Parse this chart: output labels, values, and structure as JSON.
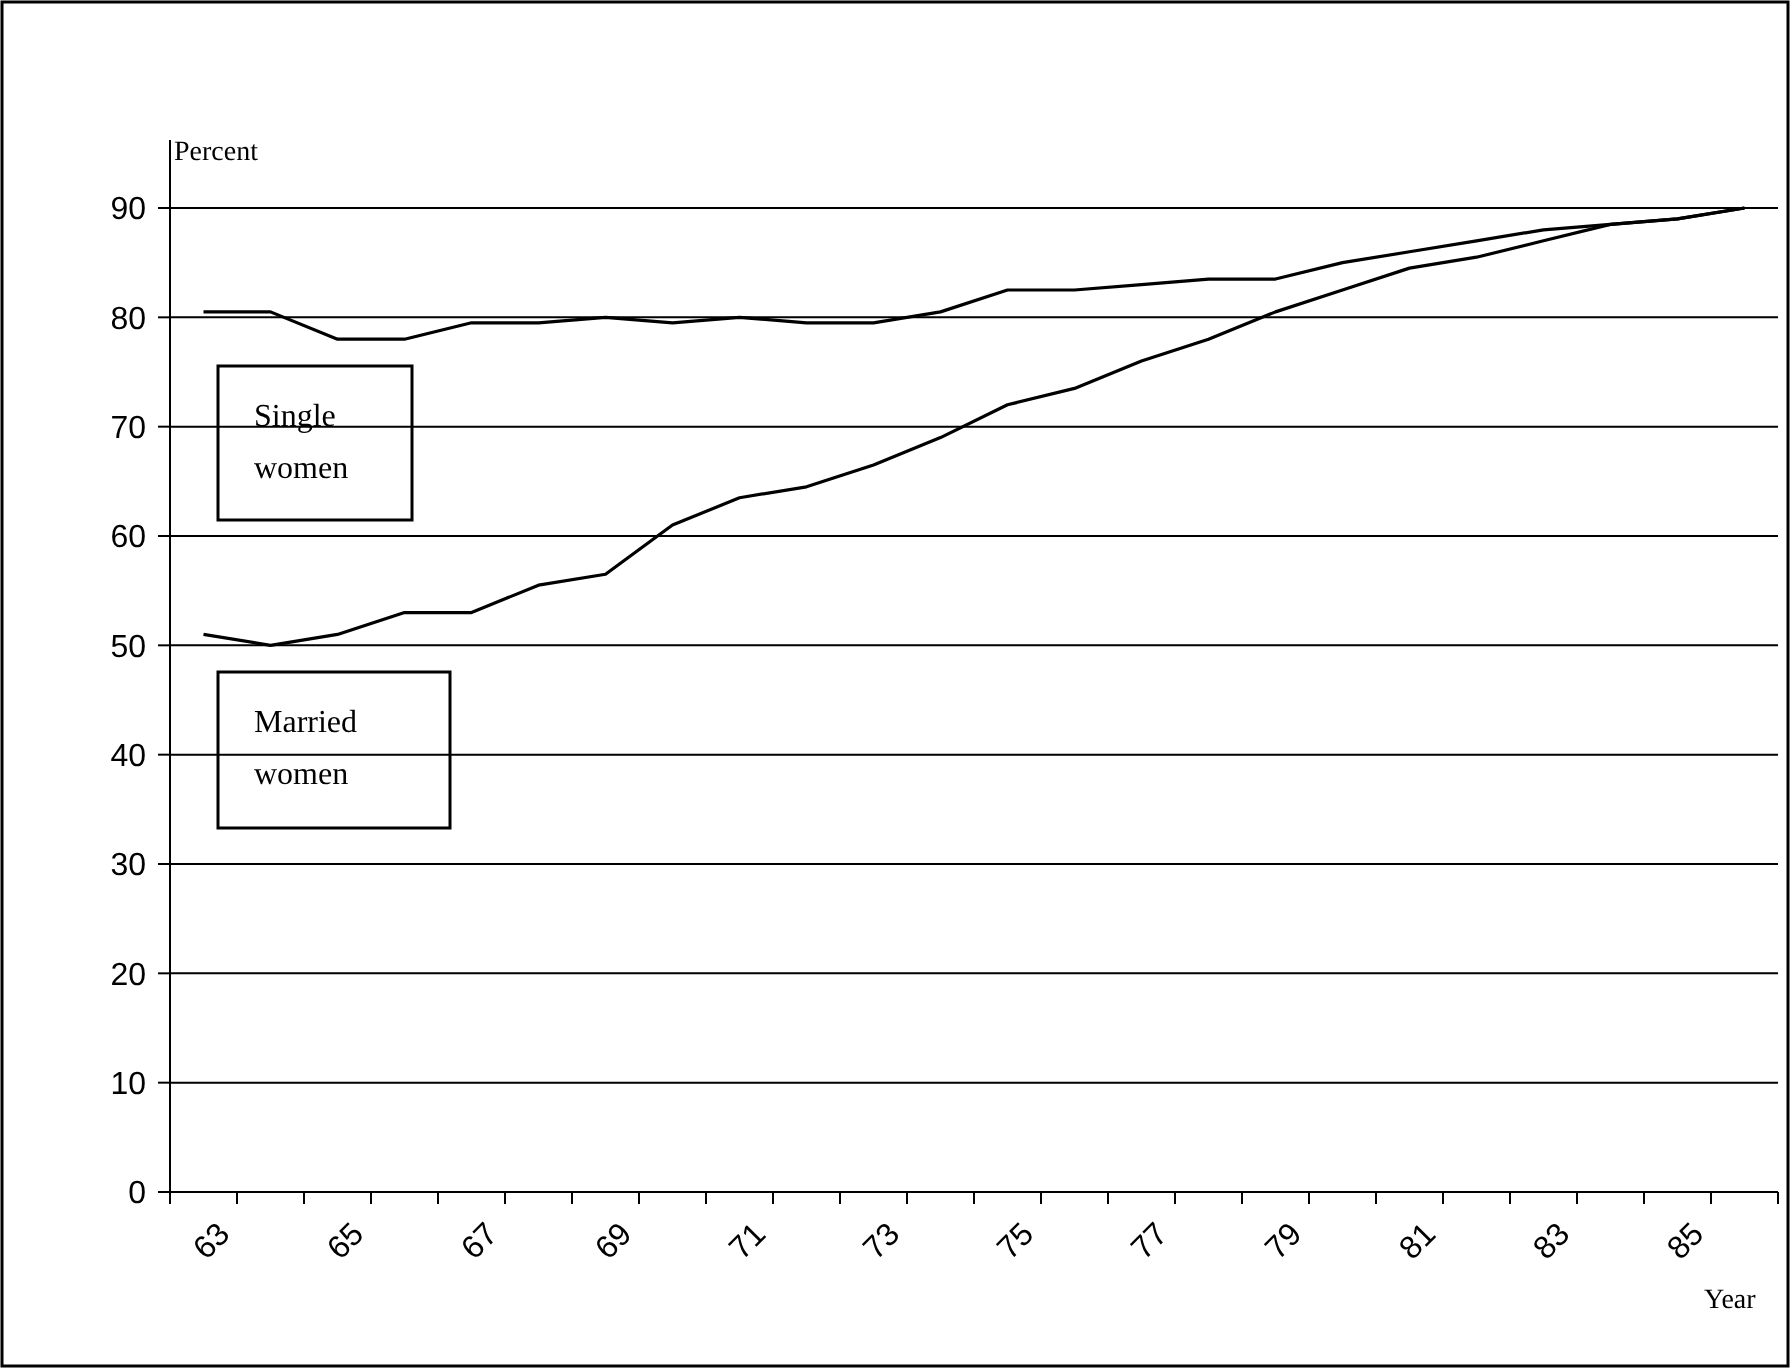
{
  "chart_data": {
    "type": "line",
    "ylabel": "Percent",
    "xlabel": "Year",
    "categories": [
      "63",
      null,
      "65",
      null,
      "67",
      null,
      "69",
      null,
      "71",
      null,
      "73",
      null,
      "75",
      null,
      "77",
      null,
      "79",
      null,
      "81",
      null,
      "83",
      null,
      "85",
      null
    ],
    "series": [
      {
        "name": "Single women",
        "color": "#000000",
        "values": [
          80.5,
          80.5,
          78,
          78,
          79.5,
          79.5,
          80,
          79.5,
          80,
          79.5,
          79.5,
          80.5,
          82.5,
          82.5,
          83,
          83.5,
          83.5,
          85,
          86,
          87,
          88,
          88.5,
          89,
          90
        ]
      },
      {
        "name": "Married women",
        "color": "#000000",
        "values": [
          51,
          50,
          51,
          53,
          53,
          55.5,
          56.5,
          61,
          63.5,
          64.5,
          66.5,
          69,
          72,
          73.5,
          76,
          78,
          80.5,
          82.5,
          84.5,
          85.5,
          87,
          88.5,
          89,
          90
        ]
      }
    ],
    "ylim": [
      0,
      90
    ],
    "yticks": [
      0,
      10,
      20,
      30,
      40,
      50,
      60,
      70,
      80,
      90
    ],
    "grid": "y",
    "marker": "none",
    "line_style": "solid"
  }
}
